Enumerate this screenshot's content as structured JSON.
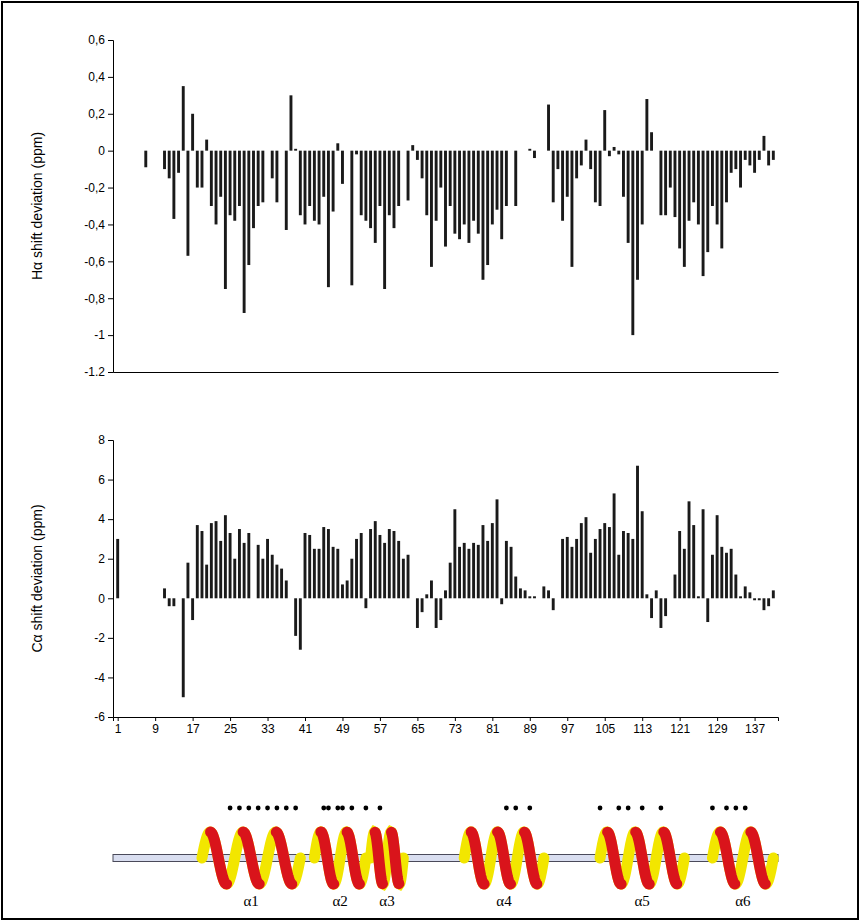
{
  "chart_data": [
    {
      "type": "bar",
      "ylabel": "Hα shift deviation (ppm)",
      "color": "#1a1a1a",
      "tick_labels": "y",
      "xlim": [
        0,
        142
      ],
      "ylim": [
        -1.2,
        0.6
      ],
      "yticks": [
        {
          "value": 0.6,
          "label": "0,6"
        },
        {
          "value": 0.4,
          "label": "0,4"
        },
        {
          "value": 0.2,
          "label": "0,2"
        },
        0,
        {
          "value": -0.2,
          "label": "-0,2"
        },
        {
          "value": -0.4,
          "label": "-0,4"
        },
        {
          "value": -0.6,
          "label": "-0,6"
        },
        {
          "value": -0.8,
          "label": "-0,8"
        },
        -1,
        {
          "value": -1.2,
          "label": "-1.2"
        }
      ],
      "x": [
        1,
        2,
        3,
        4,
        5,
        6,
        7,
        8,
        9,
        10,
        11,
        12,
        13,
        14,
        15,
        16,
        17,
        18,
        19,
        20,
        21,
        22,
        23,
        24,
        25,
        26,
        27,
        28,
        29,
        30,
        31,
        32,
        33,
        34,
        35,
        36,
        37,
        38,
        39,
        40,
        41,
        42,
        43,
        44,
        45,
        46,
        47,
        48,
        49,
        50,
        51,
        52,
        53,
        54,
        55,
        56,
        57,
        58,
        59,
        60,
        61,
        62,
        63,
        64,
        65,
        66,
        67,
        68,
        69,
        70,
        71,
        72,
        73,
        74,
        75,
        76,
        77,
        78,
        79,
        80,
        81,
        82,
        83,
        84,
        85,
        86,
        87,
        88,
        89,
        90,
        91,
        92,
        93,
        94,
        95,
        96,
        97,
        98,
        99,
        100,
        101,
        102,
        103,
        104,
        105,
        106,
        107,
        108,
        109,
        110,
        111,
        112,
        113,
        114,
        115,
        116,
        117,
        118,
        119,
        120,
        121,
        122,
        123,
        124,
        125,
        126,
        127,
        128,
        129,
        130,
        131,
        132,
        133,
        134,
        135,
        136,
        137,
        138,
        139,
        140,
        141
      ],
      "values": [
        null,
        null,
        null,
        null,
        null,
        null,
        -0.09,
        null,
        null,
        null,
        -0.1,
        -0.15,
        -0.37,
        -0.12,
        0.35,
        -0.57,
        0.2,
        -0.2,
        -0.2,
        0.06,
        -0.3,
        -0.4,
        -0.25,
        -0.75,
        -0.35,
        -0.38,
        -0.3,
        -0.88,
        -0.62,
        -0.42,
        -0.3,
        -0.28,
        null,
        -0.15,
        -0.28,
        null,
        -0.43,
        0.3,
        0.01,
        -0.35,
        -0.4,
        -0.3,
        -0.38,
        -0.4,
        -0.25,
        -0.74,
        -0.33,
        0.04,
        -0.18,
        null,
        -0.73,
        -0.02,
        -0.35,
        -0.38,
        -0.42,
        -0.5,
        -0.3,
        -0.75,
        -0.35,
        -0.42,
        -0.3,
        null,
        -0.27,
        0.03,
        -0.05,
        -0.15,
        -0.35,
        -0.63,
        -0.38,
        -0.2,
        -0.52,
        -0.3,
        -0.45,
        -0.48,
        -0.4,
        -0.5,
        -0.38,
        -0.45,
        -0.7,
        -0.62,
        -0.4,
        -0.32,
        -0.48,
        -0.3,
        null,
        -0.3,
        null,
        null,
        0.01,
        -0.04,
        null,
        null,
        0.25,
        -0.28,
        -0.1,
        -0.38,
        -0.25,
        -0.63,
        -0.15,
        -0.08,
        0.06,
        -0.1,
        -0.28,
        -0.3,
        0.22,
        -0.03,
        0.02,
        -0.02,
        -0.25,
        -0.5,
        -1.0,
        -0.7,
        -0.4,
        0.28,
        0.1,
        null,
        -0.35,
        -0.35,
        -0.2,
        -0.36,
        -0.53,
        -0.63,
        -0.38,
        -0.28,
        -0.4,
        -0.68,
        -0.55,
        -0.3,
        -0.4,
        -0.53,
        -0.28,
        -0.12,
        -0.1,
        -0.2,
        -0.05,
        -0.08,
        -0.12,
        -0.05,
        0.08,
        -0.08,
        -0.05
      ]
    },
    {
      "type": "bar",
      "ylabel": "Cα shift deviation (ppm)",
      "color": "#1a1a1a",
      "xlim": [
        0,
        142
      ],
      "ylim": [
        -6,
        8
      ],
      "yticks": [
        8,
        6,
        4,
        2,
        0,
        -2,
        -4,
        -6
      ],
      "xticks": [
        1,
        9,
        17,
        25,
        33,
        41,
        49,
        57,
        65,
        73,
        81,
        89,
        97,
        105,
        113,
        121,
        129,
        137
      ],
      "x": [
        1,
        2,
        3,
        4,
        5,
        6,
        7,
        8,
        9,
        10,
        11,
        12,
        13,
        14,
        15,
        16,
        17,
        18,
        19,
        20,
        21,
        22,
        23,
        24,
        25,
        26,
        27,
        28,
        29,
        30,
        31,
        32,
        33,
        34,
        35,
        36,
        37,
        38,
        39,
        40,
        41,
        42,
        43,
        44,
        45,
        46,
        47,
        48,
        49,
        50,
        51,
        52,
        53,
        54,
        55,
        56,
        57,
        58,
        59,
        60,
        61,
        62,
        63,
        64,
        65,
        66,
        67,
        68,
        69,
        70,
        71,
        72,
        73,
        74,
        75,
        76,
        77,
        78,
        79,
        80,
        81,
        82,
        83,
        84,
        85,
        86,
        87,
        88,
        89,
        90,
        91,
        92,
        93,
        94,
        95,
        96,
        97,
        98,
        99,
        100,
        101,
        102,
        103,
        104,
        105,
        106,
        107,
        108,
        109,
        110,
        111,
        112,
        113,
        114,
        115,
        116,
        117,
        118,
        119,
        120,
        121,
        122,
        123,
        124,
        125,
        126,
        127,
        128,
        129,
        130,
        131,
        132,
        133,
        134,
        135,
        136,
        137,
        138,
        139,
        140,
        141
      ],
      "values": [
        3.0,
        null,
        null,
        null,
        null,
        null,
        null,
        null,
        null,
        null,
        0.5,
        -0.4,
        -0.4,
        null,
        -5.0,
        1.8,
        -1.1,
        3.7,
        3.4,
        1.7,
        3.8,
        3.9,
        2.9,
        4.2,
        3.3,
        2.0,
        3.5,
        2.8,
        3.3,
        null,
        2.7,
        2.0,
        3.0,
        2.2,
        1.7,
        1.5,
        0.9,
        null,
        -1.9,
        -2.6,
        3.3,
        3.2,
        2.5,
        2.5,
        3.6,
        3.5,
        2.6,
        2.5,
        0.7,
        0.9,
        2.0,
        3.0,
        3.3,
        -0.5,
        3.5,
        3.9,
        3.2,
        2.8,
        3.5,
        3.4,
        2.9,
        2.0,
        2.2,
        null,
        -1.5,
        -0.7,
        0.2,
        0.9,
        -1.5,
        -1.1,
        0.4,
        1.8,
        4.5,
        2.6,
        2.8,
        2.5,
        2.8,
        2.7,
        3.7,
        2.9,
        3.8,
        5.0,
        -0.3,
        2.9,
        2.6,
        1.1,
        0.5,
        0.4,
        0.1,
        0.1,
        null,
        0.6,
        0.4,
        -0.6,
        null,
        3.0,
        3.1,
        2.6,
        3.0,
        3.8,
        4.1,
        2.3,
        3.0,
        3.5,
        3.8,
        3.6,
        5.3,
        2.2,
        3.4,
        3.3,
        3.0,
        6.7,
        4.4,
        0.2,
        -1.0,
        0.4,
        -1.5,
        -0.9,
        null,
        1.2,
        3.4,
        2.5,
        4.9,
        3.7,
        0.1,
        4.5,
        -1.2,
        2.2,
        4.2,
        2.6,
        2.3,
        2.5,
        1.2,
        0.1,
        0.6,
        0.3,
        -0.1,
        -0.1,
        -0.6,
        -0.4,
        0.4
      ]
    }
  ],
  "topology": {
    "helices": [
      {
        "label": "α1",
        "start": 19,
        "end": 40,
        "dots": [
          25,
          27,
          29,
          31,
          33,
          35,
          37,
          39
        ]
      },
      {
        "label": "α2",
        "start": 43,
        "end": 54,
        "dots": [
          45,
          46,
          48,
          49,
          51
        ]
      },
      {
        "label": "α3",
        "start": 55,
        "end": 62,
        "dots": [
          54,
          57
        ]
      },
      {
        "label": "α4",
        "start": 75,
        "end": 92,
        "dots": [
          84,
          86,
          89
        ]
      },
      {
        "label": "α5",
        "start": 104,
        "end": 122,
        "dots": [
          104,
          108,
          110,
          113,
          117
        ]
      },
      {
        "label": "α6",
        "start": 128,
        "end": 141,
        "dots": [
          128,
          131,
          133,
          135
        ]
      }
    ]
  }
}
